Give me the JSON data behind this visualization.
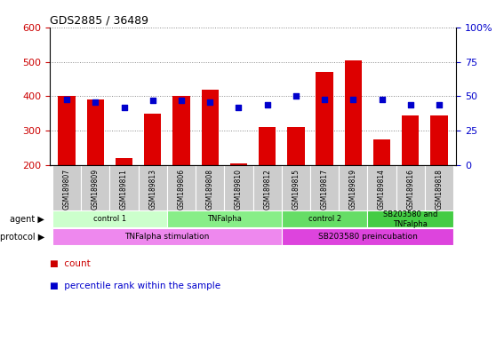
{
  "title": "GDS2885 / 36489",
  "samples": [
    "GSM189807",
    "GSM189809",
    "GSM189811",
    "GSM189813",
    "GSM189806",
    "GSM189808",
    "GSM189810",
    "GSM189812",
    "GSM189815",
    "GSM189817",
    "GSM189819",
    "GSM189814",
    "GSM189816",
    "GSM189818"
  ],
  "counts": [
    400,
    390,
    220,
    350,
    400,
    420,
    205,
    310,
    310,
    470,
    505,
    275,
    345,
    345
  ],
  "percentile_ranks": [
    48,
    46,
    42,
    47,
    47,
    46,
    42,
    44,
    50,
    48,
    48,
    48,
    44,
    44
  ],
  "ylim_left": [
    200,
    600
  ],
  "ylim_right": [
    0,
    100
  ],
  "yticks_left": [
    200,
    300,
    400,
    500,
    600
  ],
  "yticks_right": [
    0,
    25,
    50,
    75,
    100
  ],
  "bar_color": "#dd0000",
  "dot_color": "#0000cc",
  "bar_bottom": 200,
  "agent_groups": [
    {
      "label": "control 1",
      "start": 0,
      "end": 4,
      "color": "#ccffcc"
    },
    {
      "label": "TNFalpha",
      "start": 4,
      "end": 8,
      "color": "#88ee88"
    },
    {
      "label": "control 2",
      "start": 8,
      "end": 11,
      "color": "#66dd66"
    },
    {
      "label": "SB203580 and\nTNFalpha",
      "start": 11,
      "end": 14,
      "color": "#44cc44"
    }
  ],
  "protocol_groups": [
    {
      "label": "TNFalpha stimulation",
      "start": 0,
      "end": 8,
      "color": "#ee88ee"
    },
    {
      "label": "SB203580 preincubation",
      "start": 8,
      "end": 14,
      "color": "#dd44dd"
    }
  ],
  "legend_count_color": "#cc0000",
  "legend_dot_color": "#0000cc",
  "axis_color_left": "#cc0000",
  "axis_color_right": "#0000cc",
  "gridline_color": "#888888",
  "tick_label_bg": "#cccccc",
  "n_samples": 14
}
